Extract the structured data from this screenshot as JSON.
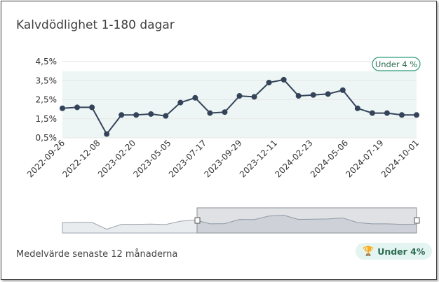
{
  "title": "Kalvdödlighet 1-180 dagar",
  "footer": {
    "label": "Medelvärde senaste 12 månaderna",
    "badge_icon": "trophy-icon",
    "badge_text": "Under 4%"
  },
  "colors": {
    "line": "#34435a",
    "target_band": "#edf6f4",
    "badge_border": "#2e9a7d",
    "badge_bg": "#e3f4f1",
    "trophy": "#e7a414"
  },
  "chart_data": {
    "type": "line",
    "title": "Kalvdödlighet 1-180 dagar",
    "xlabel": "",
    "ylabel": "",
    "ylim": [
      0.5,
      4.5
    ],
    "yticks": [
      "4,5%",
      "3,5%",
      "2,5%",
      "1,5%",
      "0,5%"
    ],
    "x_tick_labels": [
      "2022-09-26",
      "2022-12-08",
      "2023-02-20",
      "2023-05-05",
      "2023-07-17",
      "2023-09-29",
      "2023-12-11",
      "2024-02-23",
      "2024-05-06",
      "2024-07-19",
      "2024-10-01"
    ],
    "grid": true,
    "target_band": {
      "label": "Under 4 %",
      "range": [
        0.5,
        4.0
      ]
    },
    "series": [
      {
        "name": "",
        "values": [
          2.05,
          2.1,
          2.1,
          0.7,
          1.7,
          1.7,
          1.75,
          1.65,
          2.35,
          2.6,
          1.8,
          1.85,
          2.7,
          2.65,
          3.4,
          3.55,
          2.7,
          2.75,
          2.8,
          3.0,
          2.05,
          1.8,
          1.8,
          1.7,
          1.7
        ]
      }
    ]
  }
}
